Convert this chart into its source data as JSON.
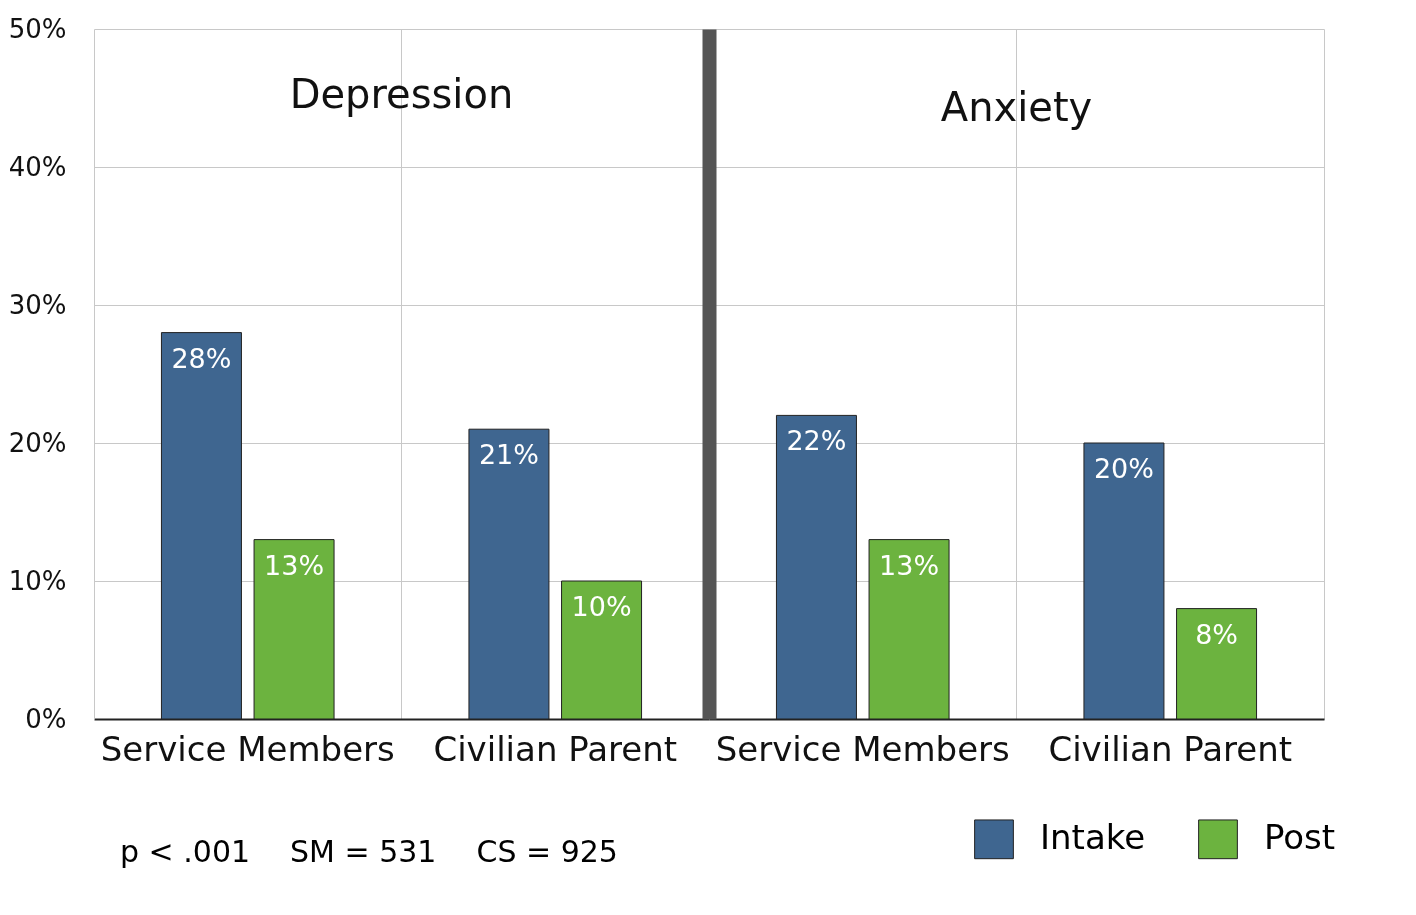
{
  "chart_data": [
    {
      "type": "bar",
      "title": "Depression",
      "categories": [
        "Service Members",
        "Civilian Parent"
      ],
      "series": [
        {
          "name": "Intake",
          "color": "#3f6690",
          "values": [
            28,
            21
          ],
          "value_labels": [
            "28%",
            "21%"
          ]
        },
        {
          "name": "Post",
          "color": "#6cb33f",
          "values": [
            13,
            10
          ],
          "value_labels": [
            "13%",
            "10%"
          ]
        }
      ],
      "ylim": [
        0,
        50
      ],
      "yticks": [
        {
          "value": 0,
          "label": "0%"
        },
        {
          "value": 10,
          "label": "10%"
        },
        {
          "value": 20,
          "label": "20%"
        },
        {
          "value": 30,
          "label": "30%"
        },
        {
          "value": 40,
          "label": "40%"
        },
        {
          "value": 50,
          "label": "50%"
        }
      ],
      "grid": true,
      "legend": "bottom right",
      "annotations": [
        "p < .001",
        "SM = 531",
        "CS = 925"
      ]
    },
    {
      "type": "bar",
      "title": "Anxiety",
      "categories": [
        "Service Members",
        "Civilian Parent"
      ],
      "series": [
        {
          "name": "Intake",
          "color": "#3f6690",
          "values": [
            22,
            20
          ],
          "value_labels": [
            "22%",
            "20%"
          ]
        },
        {
          "name": "Post",
          "color": "#6cb33f",
          "values": [
            13,
            8
          ],
          "value_labels": [
            "13%",
            "8%"
          ]
        }
      ],
      "ylim": [
        0,
        50
      ],
      "yticks": [
        {
          "value": 0,
          "label": null
        },
        {
          "value": 10,
          "label": null
        },
        {
          "value": 20,
          "label": null
        },
        {
          "value": 30,
          "label": null
        },
        {
          "value": 40,
          "label": null
        },
        {
          "value": 50,
          "label": null
        }
      ],
      "grid": true,
      "legend": "bottom right",
      "tick_labels": "x"
    }
  ]
}
